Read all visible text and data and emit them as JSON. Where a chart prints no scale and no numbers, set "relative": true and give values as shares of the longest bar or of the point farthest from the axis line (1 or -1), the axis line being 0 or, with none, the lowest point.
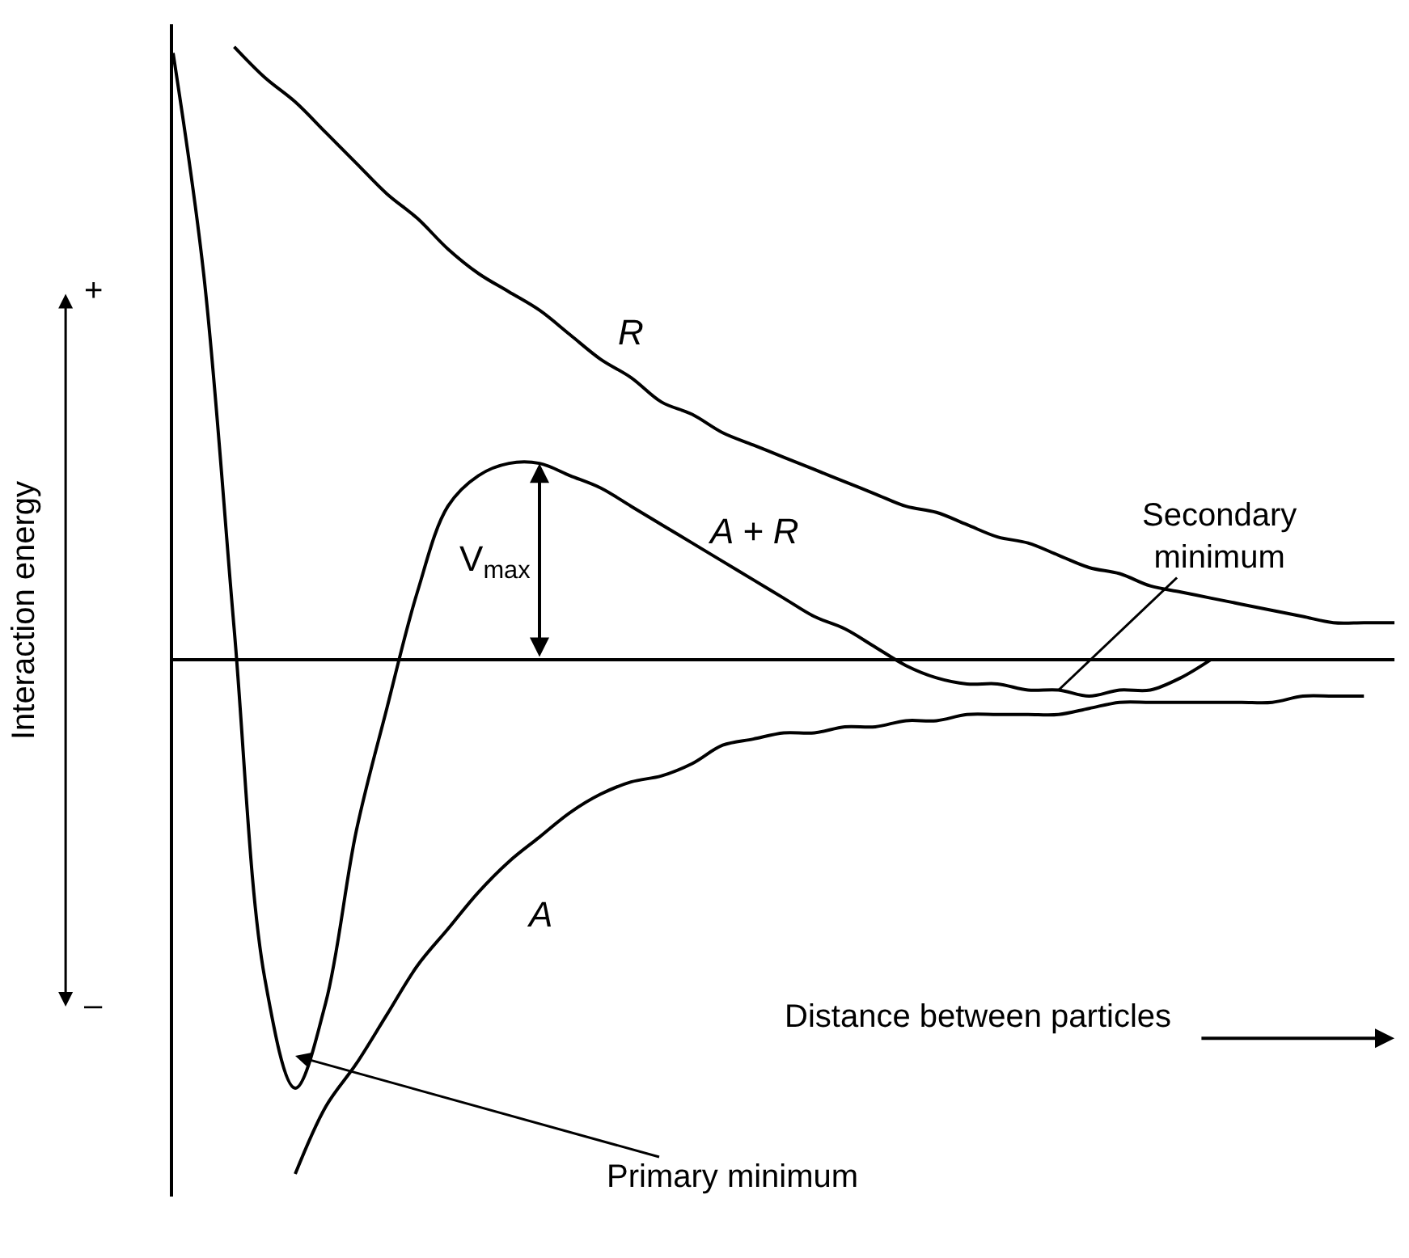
{
  "chart_data": {
    "type": "line",
    "relative": true,
    "ylabel": "Interaction energy",
    "legend": false,
    "marker": "none",
    "line_style": "solid",
    "categories": [
      null,
      null,
      null,
      null,
      null,
      null,
      null,
      null,
      null,
      null,
      null,
      null,
      null,
      null,
      null,
      null,
      null,
      null,
      null,
      null,
      null,
      null,
      null,
      null,
      null,
      null,
      null,
      null,
      null,
      null,
      null,
      null,
      null,
      null,
      null,
      null,
      null,
      null,
      null,
      null,
      null
    ],
    "series": [
      {
        "name": "R",
        "color": "#000000",
        "values": [
          null,
          null,
          1.0,
          0.95,
          0.91,
          0.86,
          0.81,
          0.76,
          0.72,
          0.67,
          0.63,
          0.6,
          0.57,
          0.53,
          0.49,
          0.46,
          0.42,
          0.4,
          0.37,
          0.35,
          0.33,
          0.31,
          0.29,
          0.27,
          0.25,
          0.24,
          0.22,
          0.2,
          0.19,
          0.17,
          0.15,
          0.14,
          0.12,
          0.11,
          0.1,
          0.09,
          0.08,
          0.07,
          0.06,
          0.06,
          0.06
        ]
      },
      {
        "name": "A + R",
        "color": "#000000",
        "values": [
          0.99,
          0.63,
          0.05,
          -0.52,
          -0.7,
          -0.56,
          -0.28,
          -0.08,
          0.11,
          0.25,
          0.3,
          0.32,
          0.32,
          0.3,
          0.28,
          0.25,
          0.22,
          0.19,
          0.16,
          0.13,
          0.1,
          0.07,
          0.05,
          0.02,
          -0.01,
          -0.03,
          -0.04,
          -0.04,
          -0.05,
          -0.05,
          -0.06,
          -0.05,
          -0.05,
          -0.03,
          0,
          null,
          null,
          null,
          null,
          null,
          null
        ]
      },
      {
        "name": "A",
        "color": "#000000",
        "values": [
          null,
          null,
          null,
          null,
          -0.84,
          -0.73,
          -0.66,
          -0.58,
          -0.5,
          -0.44,
          -0.38,
          -0.33,
          -0.29,
          -0.25,
          -0.22,
          -0.2,
          -0.19,
          -0.17,
          -0.14,
          -0.13,
          -0.12,
          -0.12,
          -0.11,
          -0.11,
          -0.1,
          -0.1,
          -0.09,
          -0.09,
          -0.09,
          -0.09,
          -0.08,
          -0.07,
          -0.07,
          -0.07,
          -0.07,
          -0.07,
          -0.07,
          -0.06,
          -0.06,
          -0.06,
          null
        ]
      }
    ],
    "annotations": [
      {
        "text": "V$_{max}$",
        "y": 0.32
      },
      "Secondary minimum",
      "Primary minimum",
      "Distance between particles",
      "+",
      "–"
    ]
  }
}
